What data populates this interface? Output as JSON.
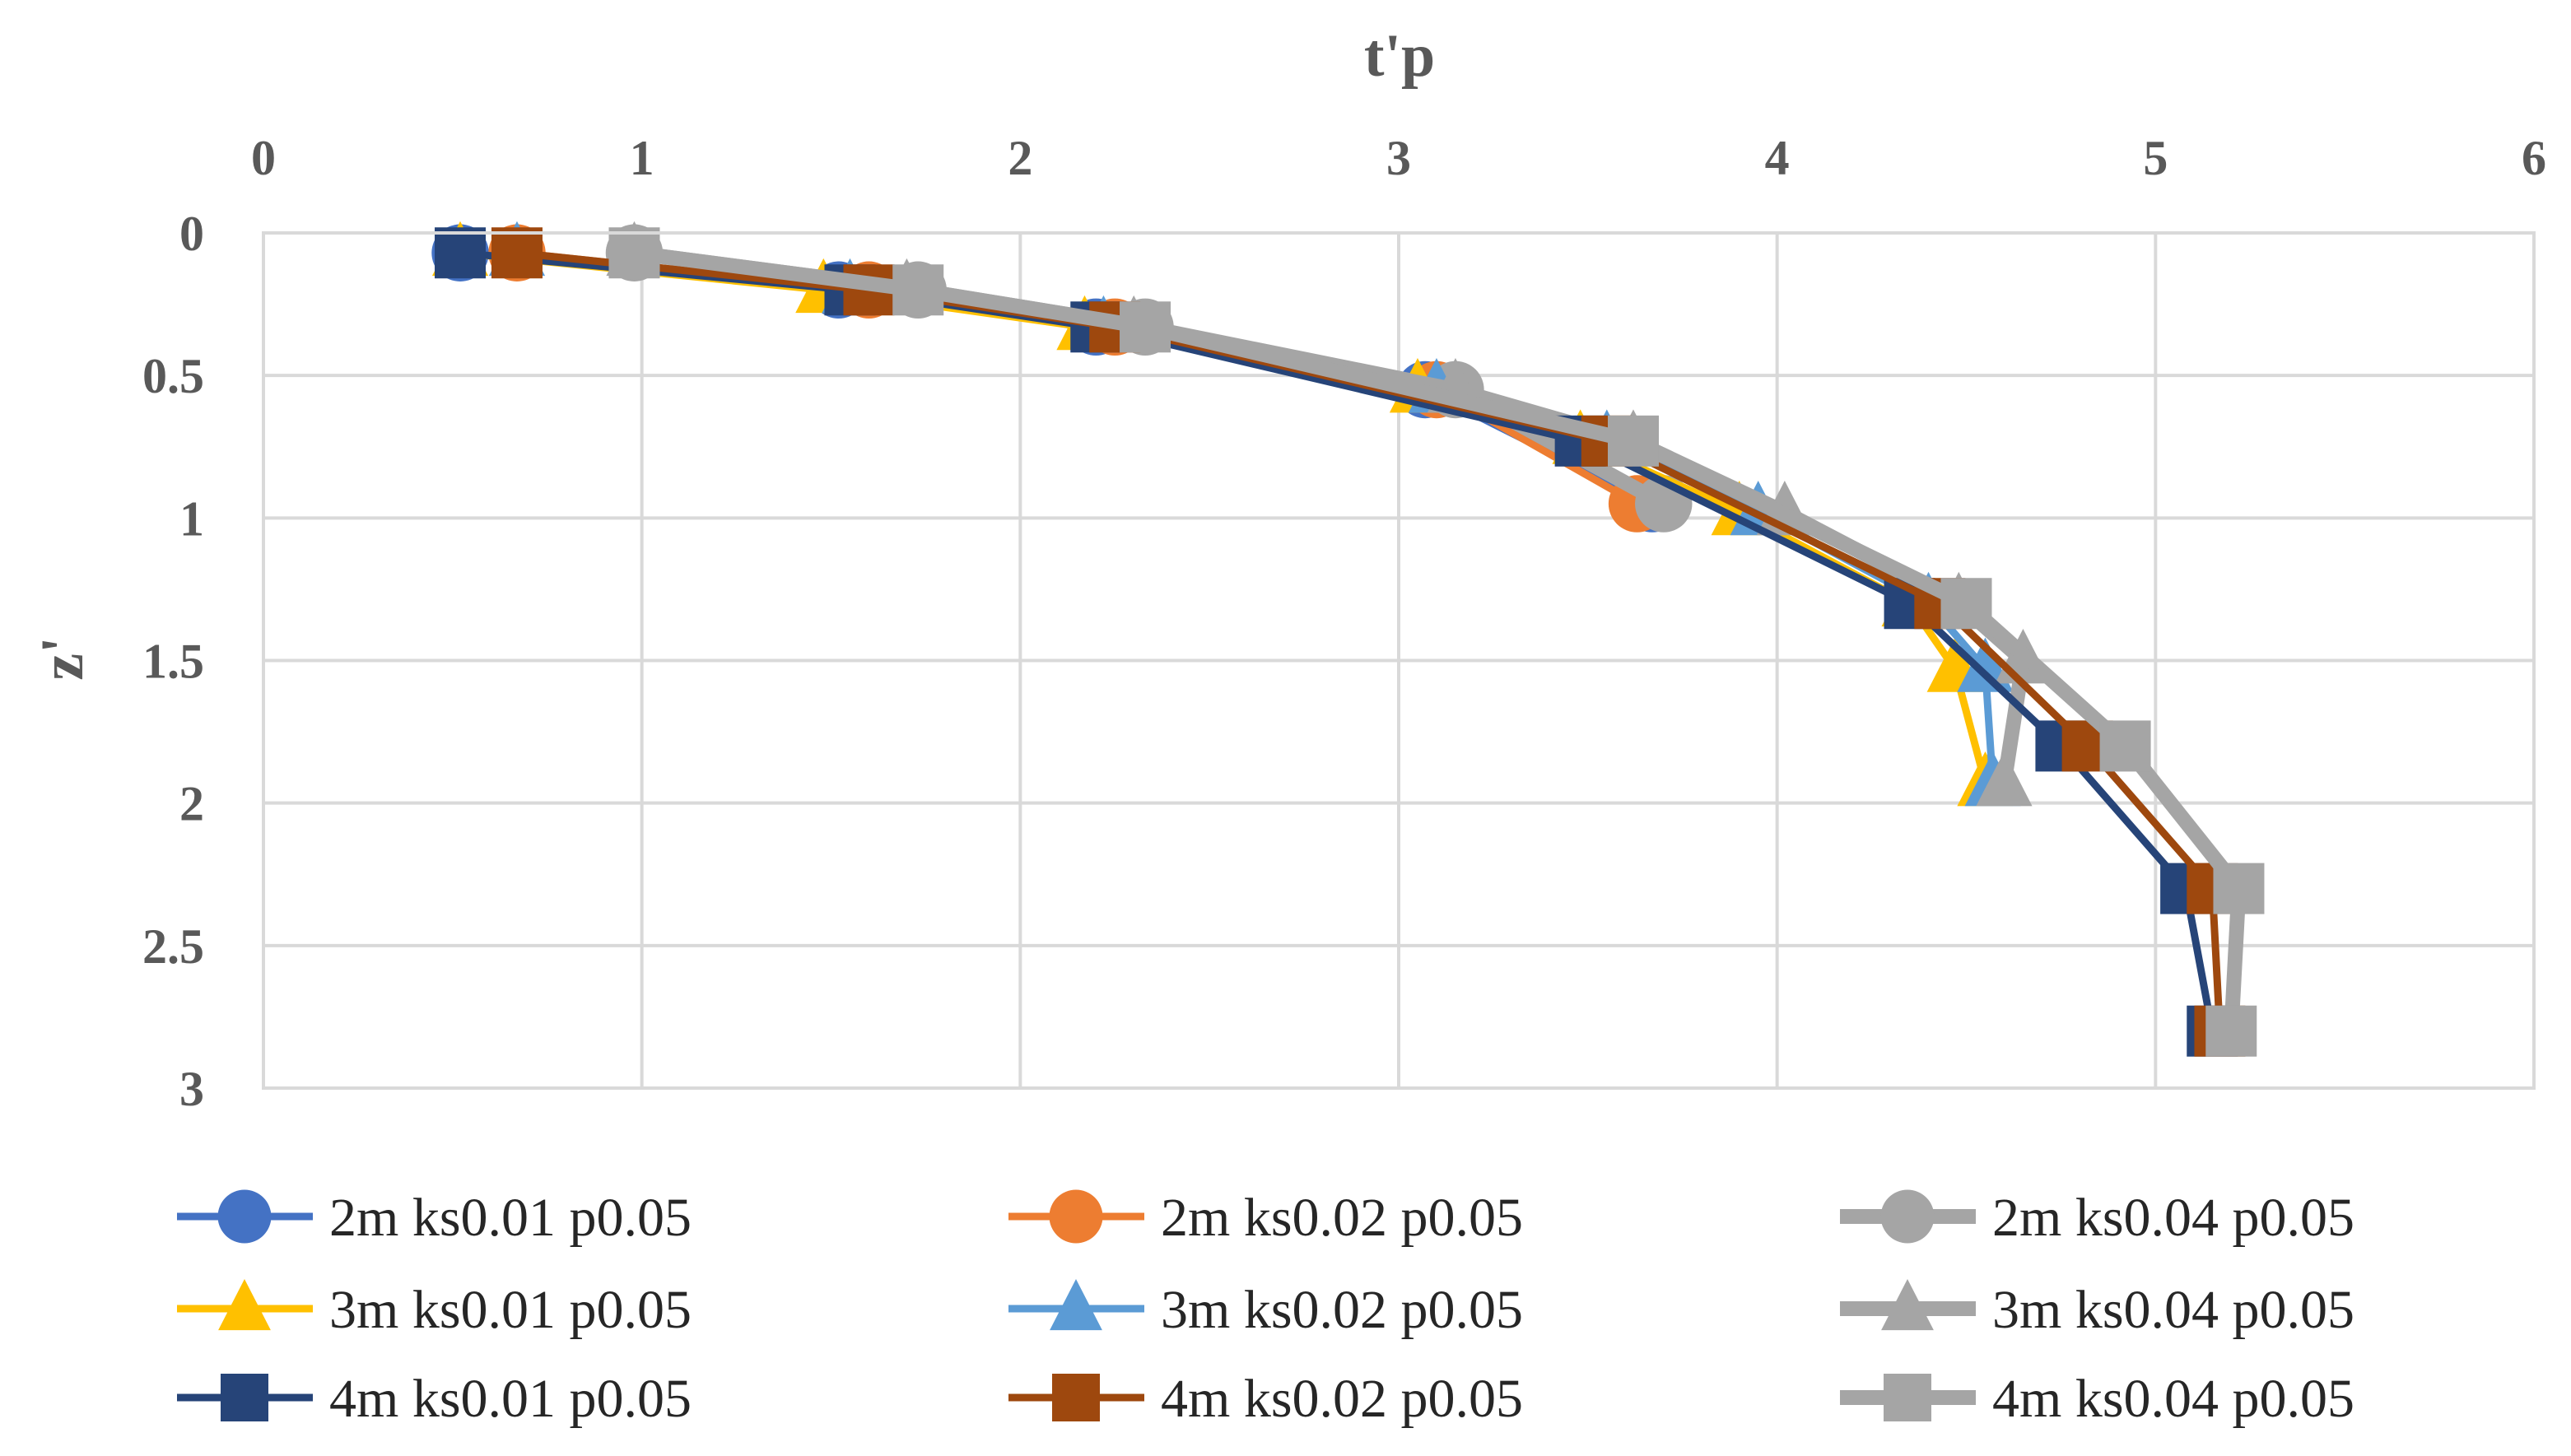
{
  "chart_data": {
    "type": "line",
    "title": "",
    "xlabel": "t'p",
    "ylabel": "z'",
    "xlim": [
      0,
      6
    ],
    "ylim": [
      0,
      3
    ],
    "y_inverted": true,
    "x_ticks": [
      "0",
      "1",
      "2",
      "3",
      "4",
      "5",
      "6"
    ],
    "y_ticks": [
      "0",
      "0.5",
      "1",
      "1.5",
      "2",
      "2.5",
      "3"
    ],
    "grid": true,
    "legend_position": "bottom",
    "series": [
      {
        "name": "2m ks0.01 p0.05",
        "color": "#4472C4",
        "marker": "circle",
        "points": [
          [
            0.52,
            0.07
          ],
          [
            1.52,
            0.2
          ],
          [
            2.2,
            0.33
          ],
          [
            3.07,
            0.55
          ],
          [
            3.67,
            0.95
          ]
        ]
      },
      {
        "name": "2m ks0.02 p0.05",
        "color": "#ED7D31",
        "marker": "circle",
        "points": [
          [
            0.67,
            0.07
          ],
          [
            1.6,
            0.2
          ],
          [
            2.25,
            0.33
          ],
          [
            3.1,
            0.55
          ],
          [
            3.63,
            0.95
          ]
        ]
      },
      {
        "name": "2m ks0.04 p0.05",
        "color": "#A5A5A5",
        "marker": "circle",
        "points": [
          [
            0.98,
            0.07
          ],
          [
            1.73,
            0.2
          ],
          [
            2.33,
            0.33
          ],
          [
            3.15,
            0.55
          ],
          [
            3.7,
            0.95
          ]
        ]
      },
      {
        "name": "3m ks0.01 p0.05",
        "color": "#FFC000",
        "marker": "triangle",
        "points": [
          [
            0.52,
            0.07
          ],
          [
            1.48,
            0.2
          ],
          [
            2.17,
            0.33
          ],
          [
            3.05,
            0.55
          ],
          [
            3.48,
            0.73
          ],
          [
            3.9,
            0.98
          ],
          [
            4.35,
            1.3
          ],
          [
            4.47,
            1.53
          ],
          [
            4.55,
            1.93
          ]
        ]
      },
      {
        "name": "3m ks0.02 p0.05",
        "color": "#5B9BD5",
        "marker": "triangle",
        "points": [
          [
            0.67,
            0.07
          ],
          [
            1.55,
            0.2
          ],
          [
            2.22,
            0.33
          ],
          [
            3.1,
            0.55
          ],
          [
            3.55,
            0.73
          ],
          [
            3.95,
            0.98
          ],
          [
            4.4,
            1.3
          ],
          [
            4.55,
            1.53
          ],
          [
            4.57,
            1.93
          ]
        ]
      },
      {
        "name": "3m ks0.04 p0.05",
        "color": "#A5A5A5",
        "marker": "triangle",
        "points": [
          [
            0.98,
            0.07
          ],
          [
            1.7,
            0.2
          ],
          [
            2.3,
            0.33
          ],
          [
            3.15,
            0.55
          ],
          [
            3.62,
            0.73
          ],
          [
            4.02,
            0.98
          ],
          [
            4.48,
            1.3
          ],
          [
            4.65,
            1.5
          ],
          [
            4.6,
            1.93
          ]
        ]
      },
      {
        "name": "4m ks0.01 p0.05",
        "color": "#264478",
        "marker": "square",
        "points": [
          [
            0.52,
            0.07
          ],
          [
            1.55,
            0.2
          ],
          [
            2.2,
            0.33
          ],
          [
            3.48,
            0.73
          ],
          [
            4.35,
            1.3
          ],
          [
            4.75,
            1.8
          ],
          [
            5.08,
            2.3
          ],
          [
            5.15,
            2.8
          ]
        ]
      },
      {
        "name": "4m ks0.02 p0.05",
        "color": "#9E480E",
        "marker": "square",
        "points": [
          [
            0.67,
            0.07
          ],
          [
            1.6,
            0.2
          ],
          [
            2.25,
            0.33
          ],
          [
            3.55,
            0.73
          ],
          [
            4.43,
            1.3
          ],
          [
            4.82,
            1.8
          ],
          [
            5.15,
            2.3
          ],
          [
            5.17,
            2.8
          ]
        ]
      },
      {
        "name": "4m ks0.04 p0.05",
        "color": "#A5A5A5",
        "marker": "square",
        "points": [
          [
            0.98,
            0.07
          ],
          [
            1.73,
            0.2
          ],
          [
            2.33,
            0.33
          ],
          [
            3.62,
            0.73
          ],
          [
            4.5,
            1.3
          ],
          [
            4.92,
            1.8
          ],
          [
            5.22,
            2.3
          ],
          [
            5.2,
            2.8
          ]
        ]
      }
    ]
  }
}
